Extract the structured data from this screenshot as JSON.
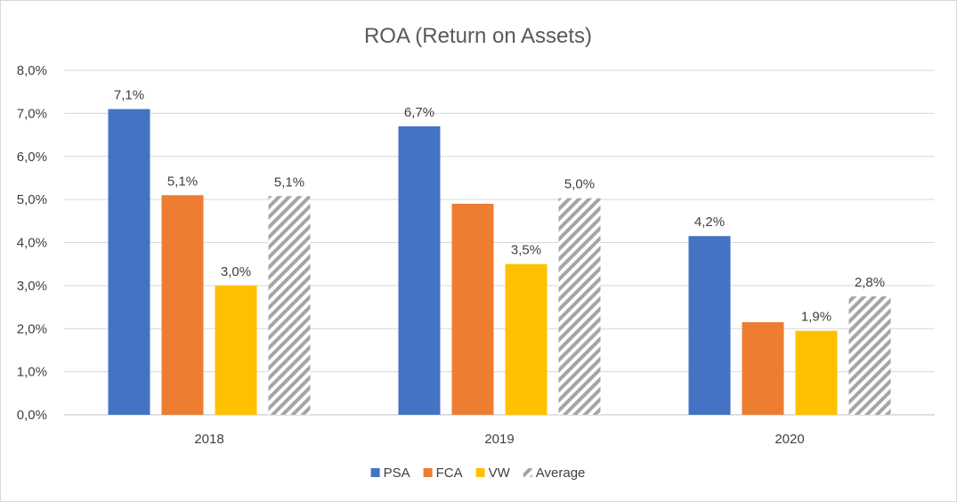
{
  "chart_data": {
    "type": "bar",
    "title": "ROA (Return on Assets)",
    "xlabel": "",
    "ylabel": "",
    "categories": [
      "2018",
      "2019",
      "2020"
    ],
    "ylim": [
      0,
      8
    ],
    "y_ticks": [
      "0,0%",
      "1,0%",
      "2,0%",
      "3,0%",
      "4,0%",
      "5,0%",
      "6,0%",
      "7,0%",
      "8,0%"
    ],
    "y_tick_values": [
      0,
      1,
      2,
      3,
      4,
      5,
      6,
      7,
      8
    ],
    "grid": true,
    "legend_position": "bottom",
    "series": [
      {
        "name": "PSA",
        "color": "#4472c4",
        "pattern": "solid",
        "values": [
          7.1,
          6.7,
          4.15
        ],
        "labels": [
          "7,1%",
          "6,7%",
          "4,2%"
        ]
      },
      {
        "name": "FCA",
        "color": "#ed7d31",
        "pattern": "solid",
        "values": [
          5.1,
          4.9,
          2.15
        ],
        "labels": [
          "5,1%",
          "",
          ""
        ]
      },
      {
        "name": "VW",
        "color": "#ffc000",
        "pattern": "solid",
        "values": [
          3.0,
          3.5,
          1.95
        ],
        "labels": [
          "3,0%",
          "3,5%",
          "1,9%"
        ]
      },
      {
        "name": "Average",
        "color": "#a5a5a5",
        "pattern": "diagonal-stripes",
        "values": [
          5.08,
          5.03,
          2.75
        ],
        "labels": [
          "5,1%",
          "5,0%",
          "2,8%"
        ]
      }
    ]
  }
}
